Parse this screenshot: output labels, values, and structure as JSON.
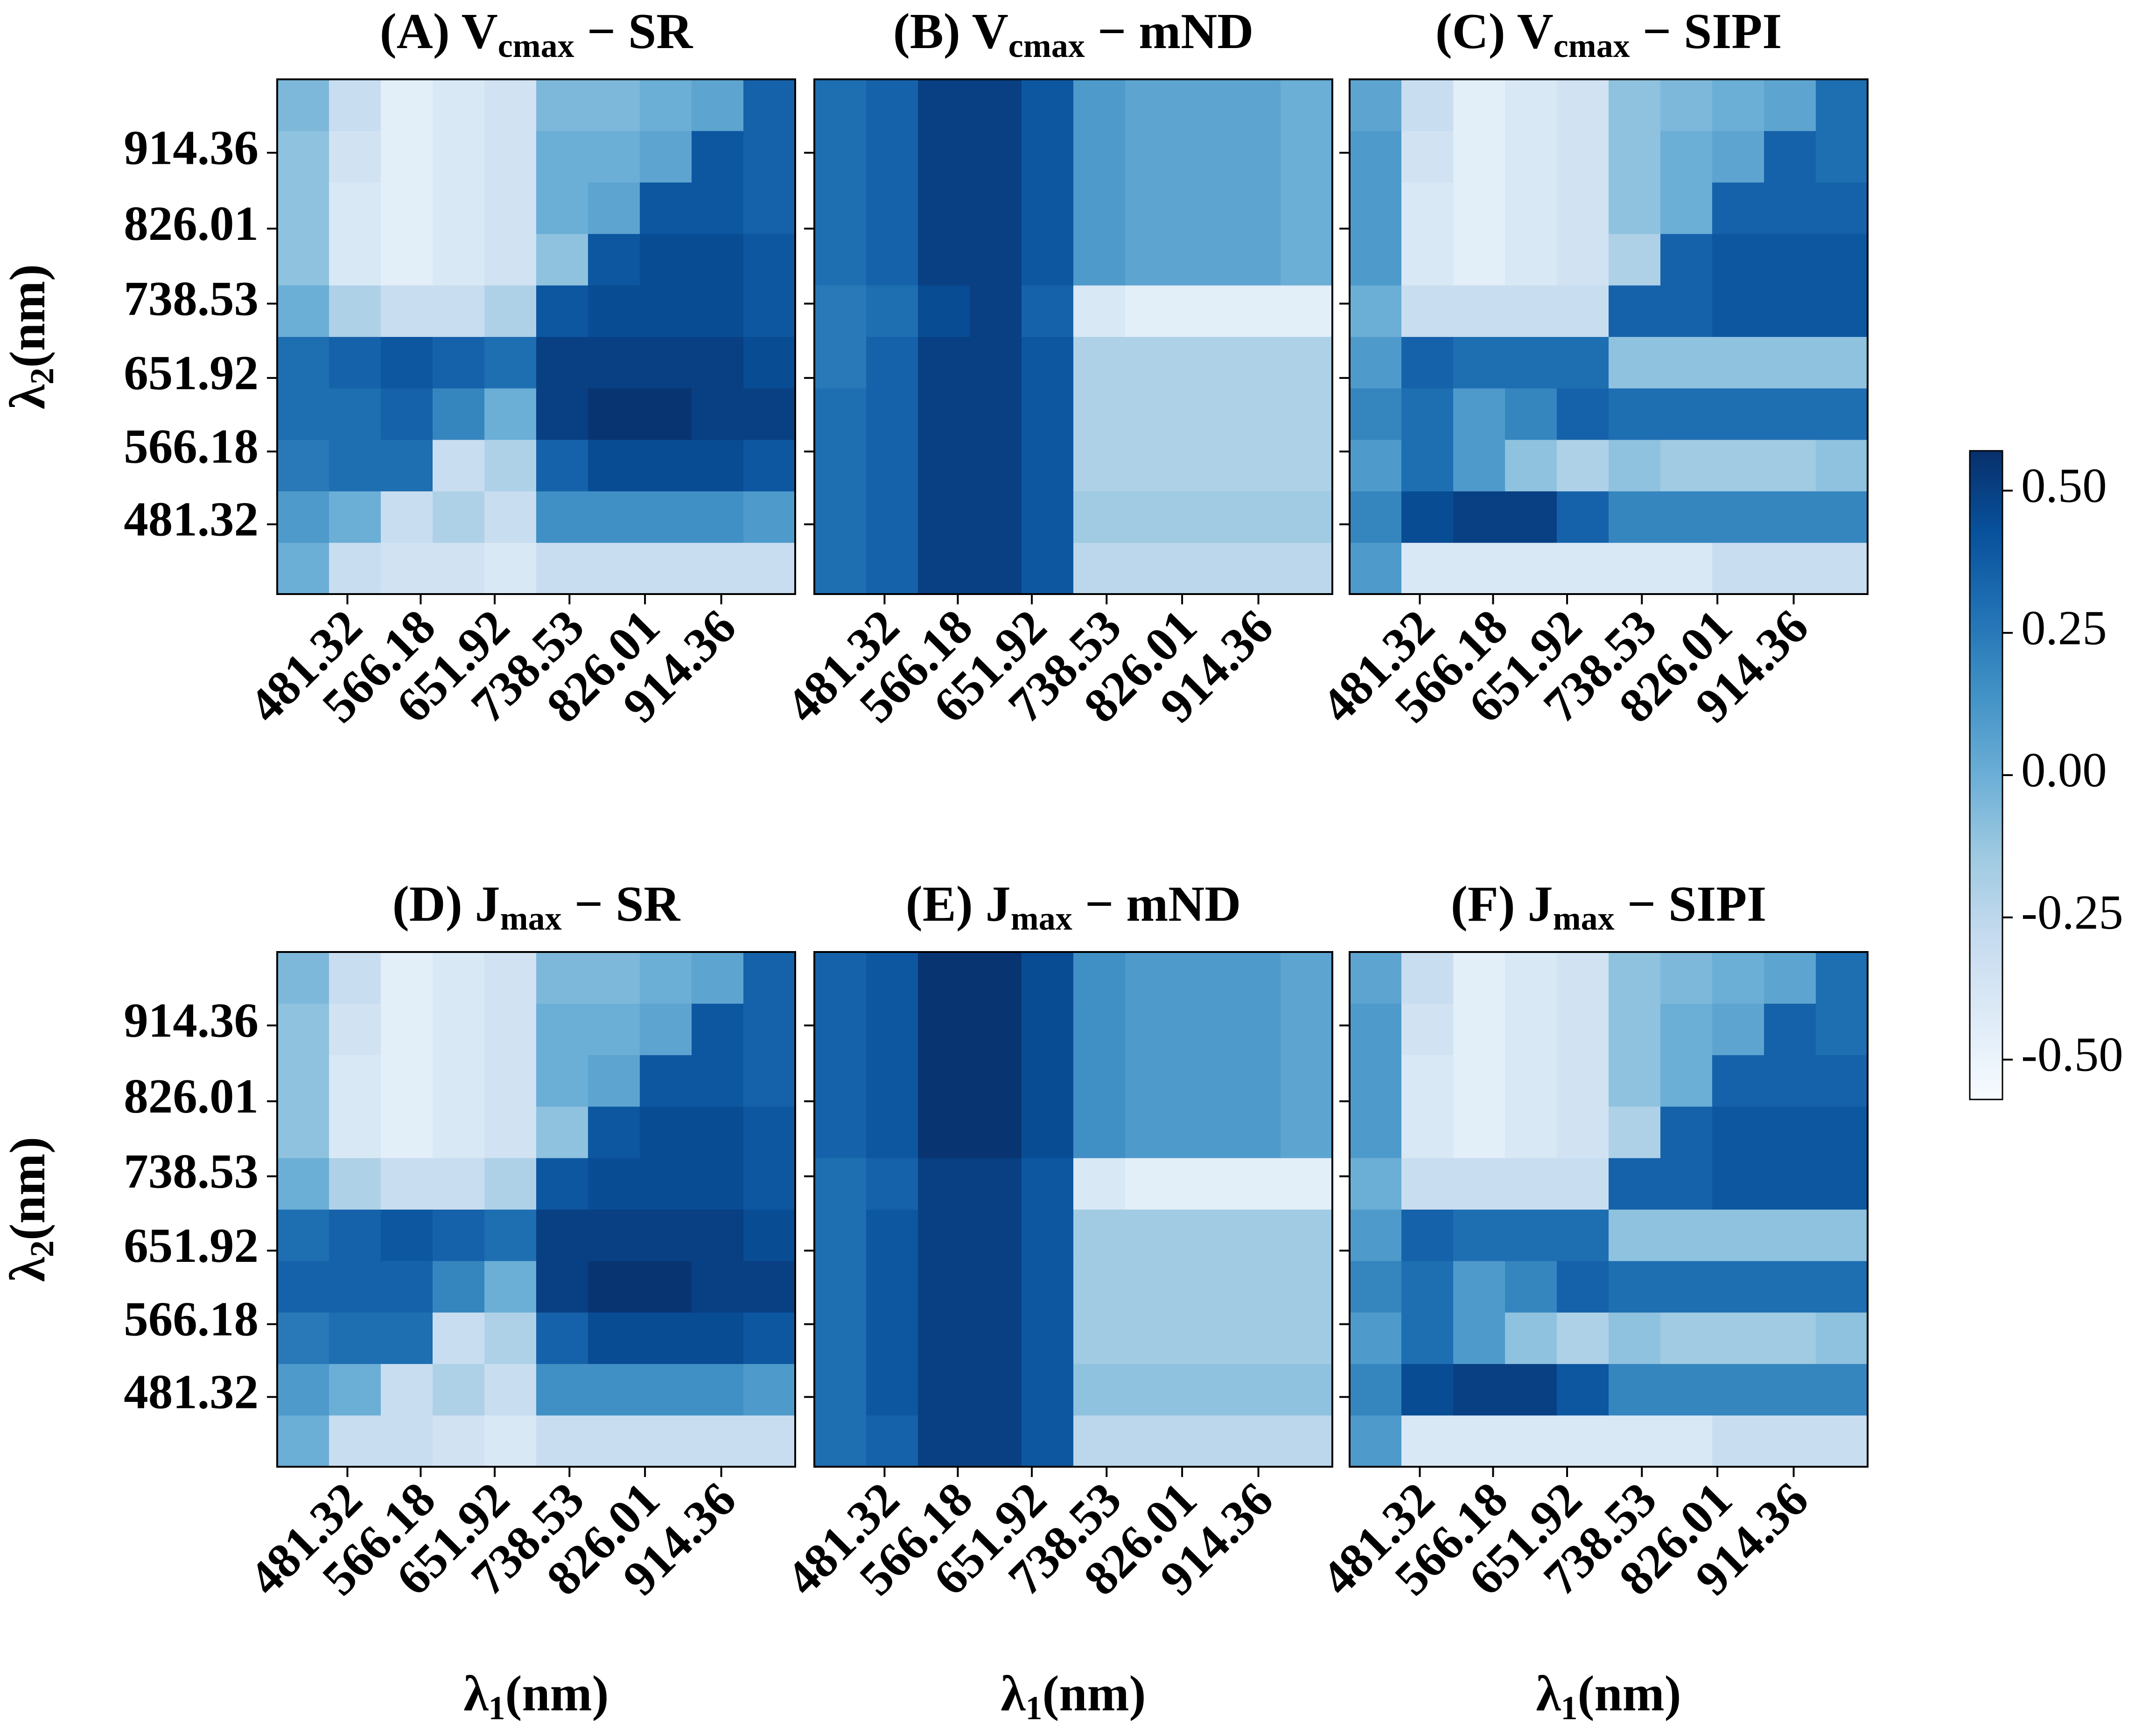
{
  "chart_data": [
    {
      "type": "heatmap",
      "title": [
        "(A) V",
        "cmax",
        " − SR"
      ],
      "xlim": [
        400,
        1000
      ],
      "ylim": [
        400,
        1000
      ],
      "xbins": [
        400,
        460,
        520,
        580,
        640,
        700,
        760,
        820,
        880,
        940,
        1000
      ],
      "ybins": [
        400,
        460,
        520,
        580,
        640,
        700,
        760,
        820,
        880,
        940,
        1000
      ],
      "xticks": [
        481.32,
        566.18,
        651.92,
        738.53,
        826.01,
        914.36
      ],
      "yticks": [
        481.32,
        566.18,
        651.92,
        738.53,
        826.01,
        914.36
      ],
      "show_yticklabels": true,
      "ylabel": [
        "λ",
        "2",
        "(nm)"
      ],
      "z": [
        [
          0.0,
          -0.3,
          -0.35,
          -0.35,
          -0.4,
          -0.3,
          -0.3,
          -0.3,
          -0.3,
          -0.3
        ],
        [
          0.1,
          0.0,
          -0.3,
          -0.2,
          -0.3,
          0.15,
          0.15,
          0.15,
          0.15,
          0.1
        ],
        [
          0.25,
          0.3,
          0.3,
          -0.3,
          -0.2,
          0.35,
          0.45,
          0.45,
          0.45,
          0.4
        ],
        [
          0.3,
          0.3,
          0.35,
          0.2,
          0.0,
          0.5,
          0.55,
          0.55,
          0.5,
          0.5
        ],
        [
          0.3,
          0.35,
          0.4,
          0.35,
          0.3,
          0.5,
          0.5,
          0.5,
          0.5,
          0.45
        ],
        [
          0.0,
          -0.2,
          -0.3,
          -0.3,
          -0.2,
          0.4,
          0.45,
          0.45,
          0.45,
          0.4
        ],
        [
          -0.1,
          -0.4,
          -0.45,
          -0.4,
          -0.35,
          -0.1,
          0.4,
          0.45,
          0.45,
          0.4
        ],
        [
          -0.1,
          -0.4,
          -0.45,
          -0.4,
          -0.35,
          0.0,
          0.05,
          0.4,
          0.4,
          0.35
        ],
        [
          -0.1,
          -0.35,
          -0.45,
          -0.4,
          -0.35,
          0.0,
          0.0,
          0.05,
          0.4,
          0.35
        ],
        [
          -0.05,
          -0.3,
          -0.45,
          -0.4,
          -0.35,
          -0.05,
          -0.05,
          0.0,
          0.05,
          0.35
        ]
      ]
    },
    {
      "type": "heatmap",
      "title": [
        "(B) V",
        "cmax",
        " − mND"
      ],
      "xlim": [
        400,
        1000
      ],
      "ylim": [
        400,
        1000
      ],
      "xbins": [
        400,
        460,
        520,
        580,
        640,
        700,
        760,
        820,
        880,
        940,
        1000
      ],
      "ybins": [
        400,
        460,
        520,
        580,
        640,
        700,
        760,
        820,
        880,
        940,
        1000
      ],
      "xticks": [
        481.32,
        566.18,
        651.92,
        738.53,
        826.01,
        914.36
      ],
      "yticks": [
        481.32,
        566.18,
        651.92,
        738.53,
        826.01,
        914.36
      ],
      "show_yticklabels": false,
      "z": [
        [
          0.3,
          0.35,
          0.5,
          0.5,
          0.4,
          -0.25,
          -0.25,
          -0.25,
          -0.25,
          -0.25
        ],
        [
          0.3,
          0.35,
          0.5,
          0.5,
          0.4,
          -0.15,
          -0.15,
          -0.15,
          -0.15,
          -0.15
        ],
        [
          0.3,
          0.35,
          0.5,
          0.5,
          0.4,
          -0.2,
          -0.2,
          -0.2,
          -0.2,
          -0.2
        ],
        [
          0.3,
          0.35,
          0.5,
          0.5,
          0.4,
          -0.2,
          -0.2,
          -0.2,
          -0.2,
          -0.2
        ],
        [
          0.25,
          0.35,
          0.5,
          0.5,
          0.4,
          -0.2,
          -0.2,
          -0.2,
          -0.2,
          -0.2
        ],
        [
          0.25,
          0.3,
          0.45,
          0.5,
          0.35,
          -0.4,
          -0.45,
          -0.45,
          -0.45,
          -0.45
        ],
        [
          0.3,
          0.35,
          0.5,
          0.5,
          0.4,
          0.1,
          0.05,
          0.05,
          0.05,
          0.0
        ],
        [
          0.3,
          0.35,
          0.5,
          0.5,
          0.4,
          0.1,
          0.05,
          0.05,
          0.05,
          0.0
        ],
        [
          0.3,
          0.35,
          0.5,
          0.5,
          0.4,
          0.1,
          0.05,
          0.05,
          0.05,
          0.0
        ],
        [
          0.3,
          0.35,
          0.5,
          0.5,
          0.4,
          0.1,
          0.05,
          0.05,
          0.05,
          0.0
        ]
      ]
    },
    {
      "type": "heatmap",
      "title": [
        "(C) V",
        "cmax",
        " − SIPI"
      ],
      "xlim": [
        400,
        1000
      ],
      "ylim": [
        400,
        1000
      ],
      "xbins": [
        400,
        460,
        520,
        580,
        640,
        700,
        760,
        820,
        880,
        940,
        1000
      ],
      "ybins": [
        400,
        460,
        520,
        580,
        640,
        700,
        760,
        820,
        880,
        940,
        1000
      ],
      "xticks": [
        481.32,
        566.18,
        651.92,
        738.53,
        826.01,
        914.36
      ],
      "yticks": [
        481.32,
        566.18,
        651.92,
        738.53,
        826.01,
        914.36
      ],
      "show_yticklabels": false,
      "z": [
        [
          0.1,
          -0.4,
          -0.4,
          -0.4,
          -0.4,
          -0.4,
          -0.4,
          -0.3,
          -0.3,
          -0.3
        ],
        [
          0.2,
          0.45,
          0.5,
          0.5,
          0.35,
          0.2,
          0.2,
          0.2,
          0.2,
          0.2
        ],
        [
          0.1,
          0.3,
          0.1,
          -0.1,
          -0.2,
          -0.1,
          -0.15,
          -0.15,
          -0.15,
          -0.1
        ],
        [
          0.2,
          0.3,
          0.1,
          0.2,
          0.35,
          0.3,
          0.3,
          0.3,
          0.3,
          0.3
        ],
        [
          0.1,
          0.35,
          0.3,
          0.3,
          0.3,
          -0.1,
          -0.1,
          -0.1,
          -0.1,
          -0.1
        ],
        [
          0.0,
          -0.3,
          -0.3,
          -0.3,
          -0.3,
          0.35,
          0.35,
          0.4,
          0.4,
          0.4
        ],
        [
          0.1,
          -0.4,
          -0.45,
          -0.4,
          -0.35,
          -0.2,
          0.35,
          0.4,
          0.4,
          0.4
        ],
        [
          0.1,
          -0.4,
          -0.45,
          -0.4,
          -0.35,
          -0.1,
          0.0,
          0.35,
          0.35,
          0.35
        ],
        [
          0.1,
          -0.35,
          -0.45,
          -0.4,
          -0.35,
          -0.1,
          0.0,
          0.05,
          0.35,
          0.3
        ],
        [
          0.05,
          -0.3,
          -0.45,
          -0.4,
          -0.35,
          -0.1,
          -0.05,
          0.0,
          0.05,
          0.3
        ]
      ]
    },
    {
      "type": "heatmap",
      "title": [
        "(D) J",
        "max",
        " − SR"
      ],
      "xlim": [
        400,
        1000
      ],
      "ylim": [
        400,
        1000
      ],
      "xbins": [
        400,
        460,
        520,
        580,
        640,
        700,
        760,
        820,
        880,
        940,
        1000
      ],
      "ybins": [
        400,
        460,
        520,
        580,
        640,
        700,
        760,
        820,
        880,
        940,
        1000
      ],
      "xticks": [
        481.32,
        566.18,
        651.92,
        738.53,
        826.01,
        914.36
      ],
      "yticks": [
        481.32,
        566.18,
        651.92,
        738.53,
        826.01,
        914.36
      ],
      "show_yticklabels": true,
      "ylabel": [
        "λ",
        "2",
        "(nm)"
      ],
      "xlabel": [
        "λ",
        "1",
        "(nm)"
      ],
      "z": [
        [
          0.0,
          -0.3,
          -0.3,
          -0.35,
          -0.4,
          -0.3,
          -0.3,
          -0.3,
          -0.3,
          -0.3
        ],
        [
          0.1,
          0.0,
          -0.3,
          -0.2,
          -0.3,
          0.15,
          0.15,
          0.15,
          0.15,
          0.1
        ],
        [
          0.25,
          0.3,
          0.3,
          -0.3,
          -0.2,
          0.35,
          0.45,
          0.45,
          0.45,
          0.4
        ],
        [
          0.35,
          0.35,
          0.35,
          0.2,
          0.0,
          0.5,
          0.55,
          0.55,
          0.5,
          0.5
        ],
        [
          0.3,
          0.35,
          0.4,
          0.35,
          0.3,
          0.5,
          0.5,
          0.5,
          0.5,
          0.45
        ],
        [
          0.0,
          -0.2,
          -0.3,
          -0.3,
          -0.2,
          0.4,
          0.45,
          0.45,
          0.45,
          0.4
        ],
        [
          -0.1,
          -0.4,
          -0.45,
          -0.4,
          -0.35,
          -0.1,
          0.4,
          0.45,
          0.45,
          0.4
        ],
        [
          -0.1,
          -0.4,
          -0.45,
          -0.4,
          -0.35,
          0.0,
          0.05,
          0.4,
          0.4,
          0.35
        ],
        [
          -0.1,
          -0.35,
          -0.45,
          -0.4,
          -0.35,
          0.0,
          0.0,
          0.05,
          0.4,
          0.35
        ],
        [
          -0.05,
          -0.3,
          -0.45,
          -0.4,
          -0.35,
          -0.05,
          -0.05,
          0.0,
          0.05,
          0.35
        ]
      ]
    },
    {
      "type": "heatmap",
      "title": [
        "(E) J",
        "max",
        " − mND"
      ],
      "xlim": [
        400,
        1000
      ],
      "ylim": [
        400,
        1000
      ],
      "xbins": [
        400,
        460,
        520,
        580,
        640,
        700,
        760,
        820,
        880,
        940,
        1000
      ],
      "ybins": [
        400,
        460,
        520,
        580,
        640,
        700,
        760,
        820,
        880,
        940,
        1000
      ],
      "xticks": [
        481.32,
        566.18,
        651.92,
        738.53,
        826.01,
        914.36
      ],
      "yticks": [
        481.32,
        566.18,
        651.92,
        738.53,
        826.01,
        914.36
      ],
      "show_yticklabels": false,
      "xlabel": [
        "λ",
        "1",
        "(nm)"
      ],
      "z": [
        [
          0.3,
          0.35,
          0.5,
          0.5,
          0.4,
          -0.25,
          -0.25,
          -0.25,
          -0.25,
          -0.25
        ],
        [
          0.3,
          0.4,
          0.5,
          0.5,
          0.4,
          -0.1,
          -0.1,
          -0.1,
          -0.1,
          -0.1
        ],
        [
          0.3,
          0.4,
          0.5,
          0.5,
          0.4,
          -0.15,
          -0.15,
          -0.15,
          -0.15,
          -0.15
        ],
        [
          0.3,
          0.4,
          0.5,
          0.5,
          0.4,
          -0.15,
          -0.15,
          -0.15,
          -0.15,
          -0.15
        ],
        [
          0.3,
          0.4,
          0.5,
          0.5,
          0.4,
          -0.15,
          -0.15,
          -0.15,
          -0.15,
          -0.15
        ],
        [
          0.3,
          0.35,
          0.5,
          0.5,
          0.4,
          -0.4,
          -0.45,
          -0.45,
          -0.45,
          -0.45
        ],
        [
          0.35,
          0.4,
          0.55,
          0.55,
          0.45,
          0.15,
          0.1,
          0.1,
          0.1,
          0.05
        ],
        [
          0.35,
          0.4,
          0.55,
          0.55,
          0.45,
          0.15,
          0.1,
          0.1,
          0.1,
          0.05
        ],
        [
          0.35,
          0.4,
          0.55,
          0.55,
          0.45,
          0.15,
          0.1,
          0.1,
          0.1,
          0.05
        ],
        [
          0.35,
          0.4,
          0.55,
          0.55,
          0.45,
          0.15,
          0.1,
          0.1,
          0.1,
          0.05
        ]
      ]
    },
    {
      "type": "heatmap",
      "title": [
        "(F) J",
        "max",
        " − SIPI"
      ],
      "xlim": [
        400,
        1000
      ],
      "ylim": [
        400,
        1000
      ],
      "xbins": [
        400,
        460,
        520,
        580,
        640,
        700,
        760,
        820,
        880,
        940,
        1000
      ],
      "ybins": [
        400,
        460,
        520,
        580,
        640,
        700,
        760,
        820,
        880,
        940,
        1000
      ],
      "xticks": [
        481.32,
        566.18,
        651.92,
        738.53,
        826.01,
        914.36
      ],
      "yticks": [
        481.32,
        566.18,
        651.92,
        738.53,
        826.01,
        914.36
      ],
      "show_yticklabels": false,
      "xlabel": [
        "λ",
        "1",
        "(nm)"
      ],
      "z": [
        [
          0.1,
          -0.4,
          -0.4,
          -0.4,
          -0.4,
          -0.4,
          -0.4,
          -0.3,
          -0.3,
          -0.3
        ],
        [
          0.2,
          0.45,
          0.5,
          0.5,
          0.4,
          0.2,
          0.2,
          0.2,
          0.2,
          0.2
        ],
        [
          0.1,
          0.3,
          0.1,
          -0.1,
          -0.2,
          -0.1,
          -0.15,
          -0.15,
          -0.15,
          -0.1
        ],
        [
          0.2,
          0.3,
          0.1,
          0.2,
          0.35,
          0.3,
          0.3,
          0.3,
          0.3,
          0.3
        ],
        [
          0.1,
          0.35,
          0.3,
          0.3,
          0.3,
          -0.1,
          -0.1,
          -0.1,
          -0.1,
          -0.1
        ],
        [
          0.0,
          -0.3,
          -0.3,
          -0.3,
          -0.3,
          0.35,
          0.35,
          0.4,
          0.4,
          0.4
        ],
        [
          0.1,
          -0.4,
          -0.45,
          -0.4,
          -0.35,
          -0.2,
          0.35,
          0.4,
          0.4,
          0.4
        ],
        [
          0.1,
          -0.4,
          -0.45,
          -0.4,
          -0.35,
          -0.1,
          0.0,
          0.35,
          0.35,
          0.35
        ],
        [
          0.1,
          -0.35,
          -0.45,
          -0.4,
          -0.35,
          -0.1,
          0.0,
          0.05,
          0.35,
          0.3
        ],
        [
          0.05,
          -0.3,
          -0.45,
          -0.4,
          -0.35,
          -0.1,
          -0.05,
          0.0,
          0.05,
          0.3
        ]
      ]
    }
  ],
  "colorbar": {
    "cmap": "Blues",
    "lim": [
      -0.57,
      0.57
    ],
    "ticks": [
      {
        "value": 0.5,
        "label": "0.50"
      },
      {
        "value": 0.25,
        "label": "0.25"
      },
      {
        "value": 0,
        "label": "0.00"
      },
      {
        "value": -0.25,
        "label": "-0.25"
      },
      {
        "value": -0.5,
        "label": "-0.50"
      }
    ]
  }
}
